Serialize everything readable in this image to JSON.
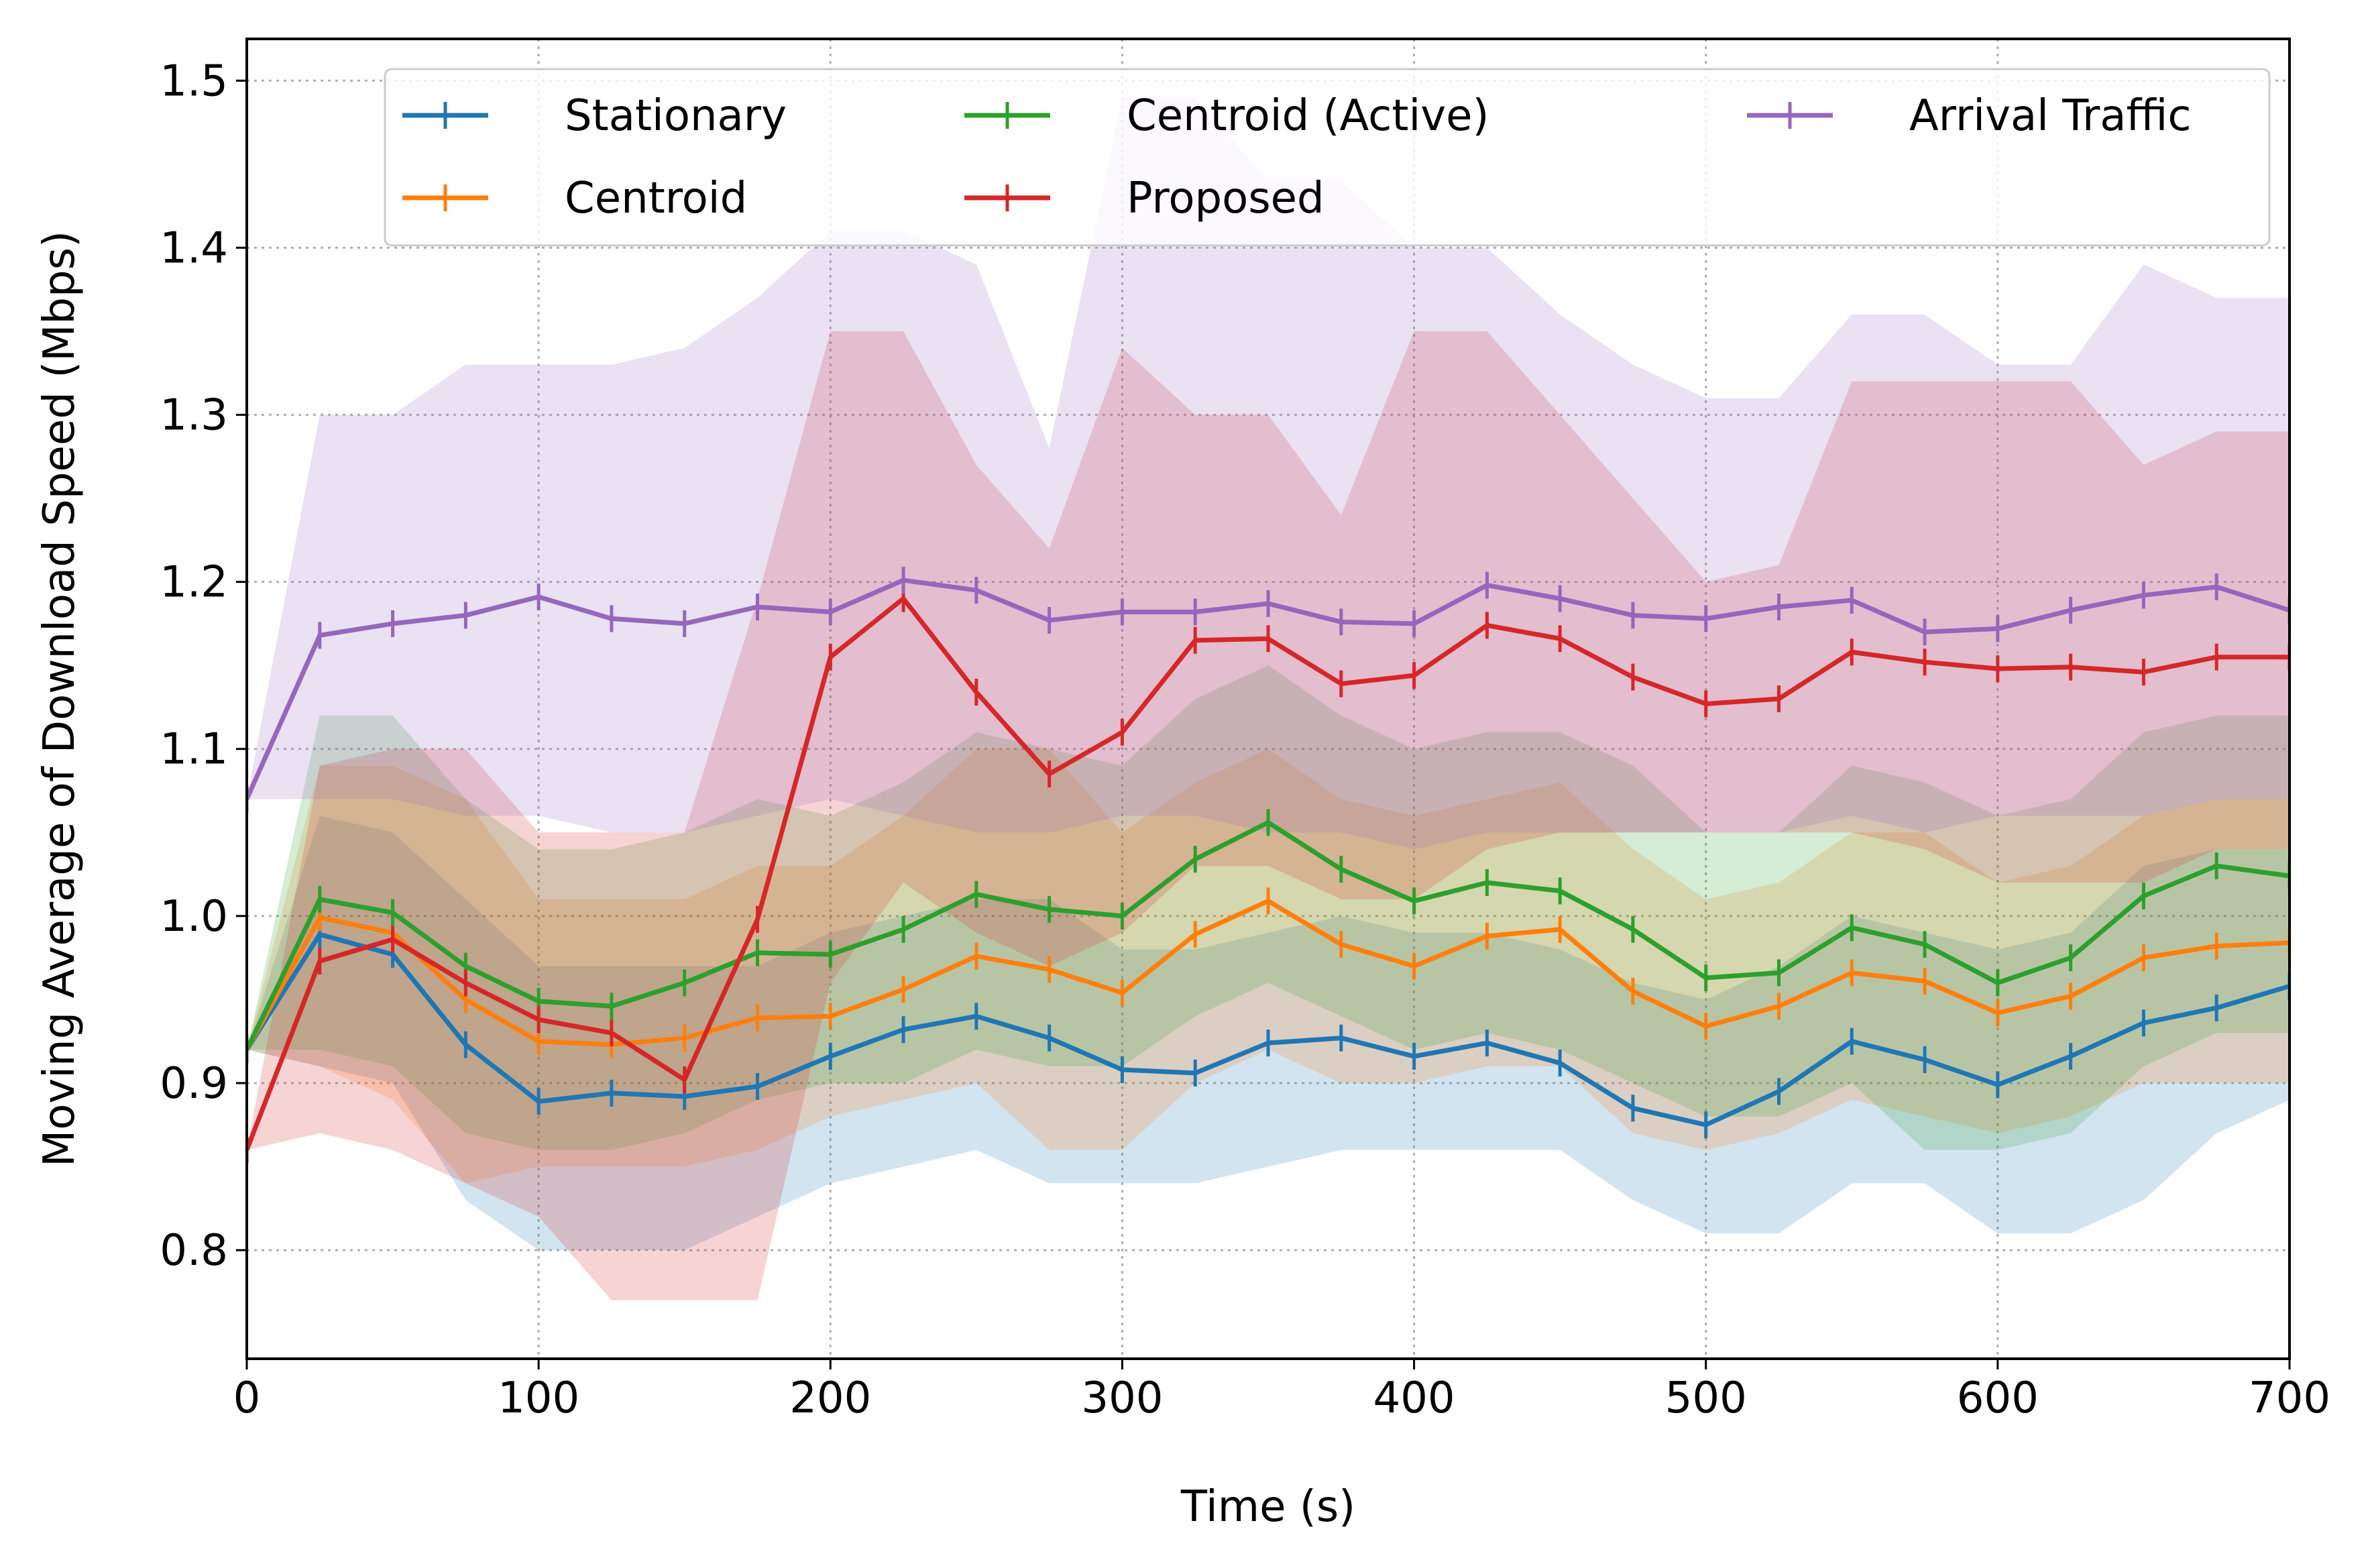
{
  "chart_data": {
    "type": "line",
    "title": "",
    "xlabel": "Time (s)",
    "ylabel": "Moving Average of Download Speed (Mbps)",
    "xlim": [
      0,
      700
    ],
    "ylim": [
      0.735,
      1.525
    ],
    "x_ticks": [
      0,
      100,
      200,
      300,
      400,
      500,
      600,
      700
    ],
    "x_tick_labels": [
      "0",
      "100",
      "200",
      "300",
      "400",
      "500",
      "600",
      "700"
    ],
    "y_ticks": [
      0.8,
      0.9,
      1.0,
      1.1,
      1.2,
      1.3,
      1.4,
      1.5
    ],
    "y_tick_labels": [
      "0.8",
      "0.9",
      "1.0",
      "1.1",
      "1.2",
      "1.3",
      "1.4",
      "1.5"
    ],
    "grid": true,
    "legend_position": "top",
    "x": [
      0,
      25,
      50,
      75,
      100,
      125,
      150,
      175,
      200,
      225,
      250,
      275,
      300,
      325,
      350,
      375,
      400,
      425,
      450,
      475,
      500,
      525,
      550,
      575,
      600,
      625,
      650,
      675,
      700
    ],
    "series": [
      {
        "name": "Stationary",
        "color": "#1f77b4",
        "values": [
          0.92,
          0.989,
          0.977,
          0.923,
          0.889,
          0.894,
          0.892,
          0.898,
          0.916,
          0.932,
          0.94,
          0.927,
          0.908,
          0.906,
          0.924,
          0.927,
          0.916,
          0.924,
          0.912,
          0.885,
          0.875,
          0.895,
          0.925,
          0.914,
          0.899,
          0.916,
          0.936,
          0.945,
          0.958
        ],
        "band_lower": [
          0.92,
          0.91,
          0.9,
          0.83,
          0.8,
          0.8,
          0.8,
          0.82,
          0.84,
          0.85,
          0.86,
          0.84,
          0.84,
          0.84,
          0.85,
          0.86,
          0.86,
          0.86,
          0.86,
          0.83,
          0.81,
          0.81,
          0.84,
          0.84,
          0.81,
          0.81,
          0.83,
          0.87,
          0.89
        ],
        "band_upper": [
          0.92,
          1.06,
          1.05,
          1.01,
          0.97,
          0.97,
          0.97,
          0.97,
          0.99,
          1.0,
          1.01,
          1.01,
          0.98,
          0.98,
          0.99,
          1.0,
          0.99,
          0.99,
          0.98,
          0.96,
          0.95,
          0.97,
          1.0,
          0.99,
          0.98,
          0.99,
          1.03,
          1.04,
          1.04
        ]
      },
      {
        "name": "Centroid",
        "color": "#ff7f0e",
        "values": [
          0.92,
          0.999,
          0.99,
          0.95,
          0.925,
          0.923,
          0.927,
          0.939,
          0.94,
          0.956,
          0.976,
          0.968,
          0.954,
          0.989,
          1.009,
          0.983,
          0.97,
          0.988,
          0.992,
          0.955,
          0.934,
          0.946,
          0.966,
          0.961,
          0.942,
          0.952,
          0.975,
          0.982,
          0.984
        ],
        "band_lower": [
          0.92,
          0.91,
          0.89,
          0.84,
          0.85,
          0.85,
          0.85,
          0.86,
          0.88,
          0.89,
          0.9,
          0.86,
          0.86,
          0.9,
          0.92,
          0.9,
          0.9,
          0.91,
          0.91,
          0.87,
          0.86,
          0.87,
          0.89,
          0.88,
          0.87,
          0.88,
          0.9,
          0.9,
          0.9
        ],
        "band_upper": [
          0.92,
          1.09,
          1.09,
          1.07,
          1.01,
          1.01,
          1.01,
          1.03,
          1.03,
          1.06,
          1.1,
          1.1,
          1.05,
          1.08,
          1.1,
          1.07,
          1.06,
          1.07,
          1.08,
          1.04,
          1.01,
          1.02,
          1.05,
          1.05,
          1.02,
          1.03,
          1.06,
          1.07,
          1.07
        ]
      },
      {
        "name": "Centroid (Active)",
        "color": "#2ca02c",
        "values": [
          0.92,
          1.01,
          1.002,
          0.97,
          0.949,
          0.946,
          0.96,
          0.978,
          0.977,
          0.992,
          1.013,
          1.004,
          1.0,
          1.034,
          1.056,
          1.028,
          1.009,
          1.02,
          1.015,
          0.992,
          0.963,
          0.966,
          0.993,
          0.983,
          0.96,
          0.975,
          1.012,
          1.03,
          1.024
        ],
        "band_lower": [
          0.92,
          0.92,
          0.91,
          0.87,
          0.86,
          0.86,
          0.87,
          0.89,
          0.9,
          0.9,
          0.92,
          0.91,
          0.91,
          0.94,
          0.96,
          0.94,
          0.92,
          0.93,
          0.92,
          0.9,
          0.88,
          0.88,
          0.9,
          0.86,
          0.86,
          0.87,
          0.91,
          0.93,
          0.93
        ],
        "band_upper": [
          0.92,
          1.12,
          1.12,
          1.07,
          1.04,
          1.04,
          1.05,
          1.07,
          1.06,
          1.08,
          1.11,
          1.1,
          1.09,
          1.13,
          1.15,
          1.12,
          1.1,
          1.11,
          1.11,
          1.09,
          1.05,
          1.05,
          1.09,
          1.08,
          1.06,
          1.07,
          1.11,
          1.12,
          1.12
        ]
      },
      {
        "name": "Proposed",
        "color": "#d62728",
        "values": [
          0.86,
          0.973,
          0.986,
          0.96,
          0.938,
          0.93,
          0.902,
          0.998,
          1.155,
          1.19,
          1.134,
          1.085,
          1.11,
          1.165,
          1.166,
          1.139,
          1.144,
          1.174,
          1.166,
          1.143,
          1.127,
          1.13,
          1.158,
          1.152,
          1.148,
          1.149,
          1.146,
          1.155,
          1.155
        ],
        "band_lower": [
          0.86,
          0.87,
          0.86,
          0.84,
          0.82,
          0.77,
          0.77,
          0.77,
          0.96,
          1.02,
          0.99,
          0.97,
          0.99,
          1.03,
          1.03,
          1.01,
          1.01,
          1.04,
          1.05,
          1.05,
          1.05,
          1.05,
          1.05,
          1.04,
          1.02,
          1.02,
          1.02,
          1.04,
          1.04
        ],
        "band_upper": [
          0.86,
          1.09,
          1.1,
          1.1,
          1.05,
          1.05,
          1.05,
          1.19,
          1.35,
          1.35,
          1.27,
          1.22,
          1.34,
          1.3,
          1.3,
          1.24,
          1.35,
          1.35,
          1.3,
          1.25,
          1.2,
          1.21,
          1.32,
          1.32,
          1.32,
          1.32,
          1.27,
          1.29,
          1.29
        ]
      },
      {
        "name": "Arrival Traffic",
        "color": "#9467bd",
        "values": [
          1.07,
          1.168,
          1.175,
          1.18,
          1.191,
          1.178,
          1.175,
          1.185,
          1.182,
          1.201,
          1.195,
          1.177,
          1.182,
          1.182,
          1.187,
          1.176,
          1.175,
          1.198,
          1.19,
          1.18,
          1.178,
          1.185,
          1.189,
          1.17,
          1.172,
          1.183,
          1.192,
          1.197,
          1.183
        ],
        "band_lower": [
          1.07,
          1.07,
          1.07,
          1.06,
          1.06,
          1.05,
          1.05,
          1.06,
          1.07,
          1.06,
          1.05,
          1.05,
          1.06,
          1.06,
          1.05,
          1.05,
          1.04,
          1.05,
          1.05,
          1.05,
          1.05,
          1.05,
          1.06,
          1.05,
          1.06,
          1.06,
          1.06,
          1.07,
          1.07
        ],
        "band_upper": [
          1.07,
          1.3,
          1.3,
          1.33,
          1.33,
          1.33,
          1.34,
          1.37,
          1.41,
          1.41,
          1.39,
          1.28,
          1.49,
          1.49,
          1.44,
          1.44,
          1.4,
          1.4,
          1.36,
          1.33,
          1.31,
          1.31,
          1.36,
          1.36,
          1.33,
          1.33,
          1.39,
          1.37,
          1.37
        ]
      }
    ]
  }
}
